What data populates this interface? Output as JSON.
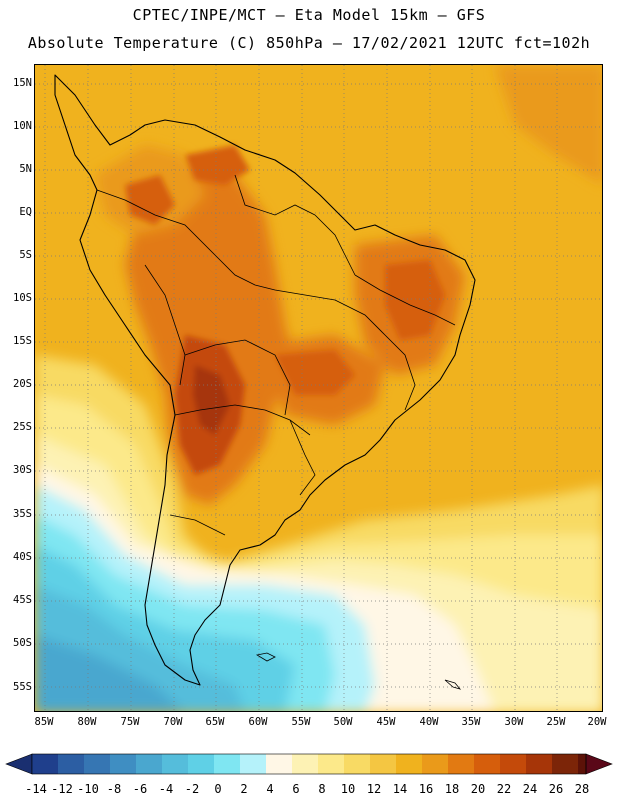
{
  "header": {
    "line1": "CPTEC/INPE/MCT –  Eta Model 15km – GFS",
    "line2": "Absolute Temperature (C) 850hPa – 17/02/2021 12UTC fct=102h"
  },
  "map": {
    "lat_labels": [
      "15N",
      "10N",
      "5N",
      "EQ",
      "5S",
      "10S",
      "15S",
      "20S",
      "25S",
      "30S",
      "35S",
      "40S",
      "45S",
      "50S",
      "55S"
    ],
    "lon_labels": [
      "85W",
      "80W",
      "75W",
      "70W",
      "65W",
      "60W",
      "55W",
      "50W",
      "45W",
      "40W",
      "35W",
      "30W",
      "25W",
      "20W"
    ]
  },
  "colorbar": {
    "labels": [
      "-14",
      "-12",
      "-10",
      "-8",
      "-6",
      "-4",
      "-2",
      "0",
      "2",
      "4",
      "6",
      "8",
      "10",
      "12",
      "14",
      "16",
      "18",
      "20",
      "22",
      "24",
      "26",
      "28"
    ],
    "colors": [
      "#1f3f8c",
      "#2c5ea3",
      "#3676b3",
      "#3f8ec2",
      "#4aa7cf",
      "#55bddb",
      "#5fd0e6",
      "#7fe6f2",
      "#b5f2fa",
      "#fff7e6",
      "#fdf2b4",
      "#fce98a",
      "#f8da64",
      "#f4c642",
      "#f0b21e",
      "#ea9a1a",
      "#e27a12",
      "#d65e0c",
      "#c44a0a",
      "#a63508",
      "#7c2508",
      "#5c1208"
    ],
    "lower_color": "#1a2f70",
    "upper_color": "#5a0818"
  }
}
